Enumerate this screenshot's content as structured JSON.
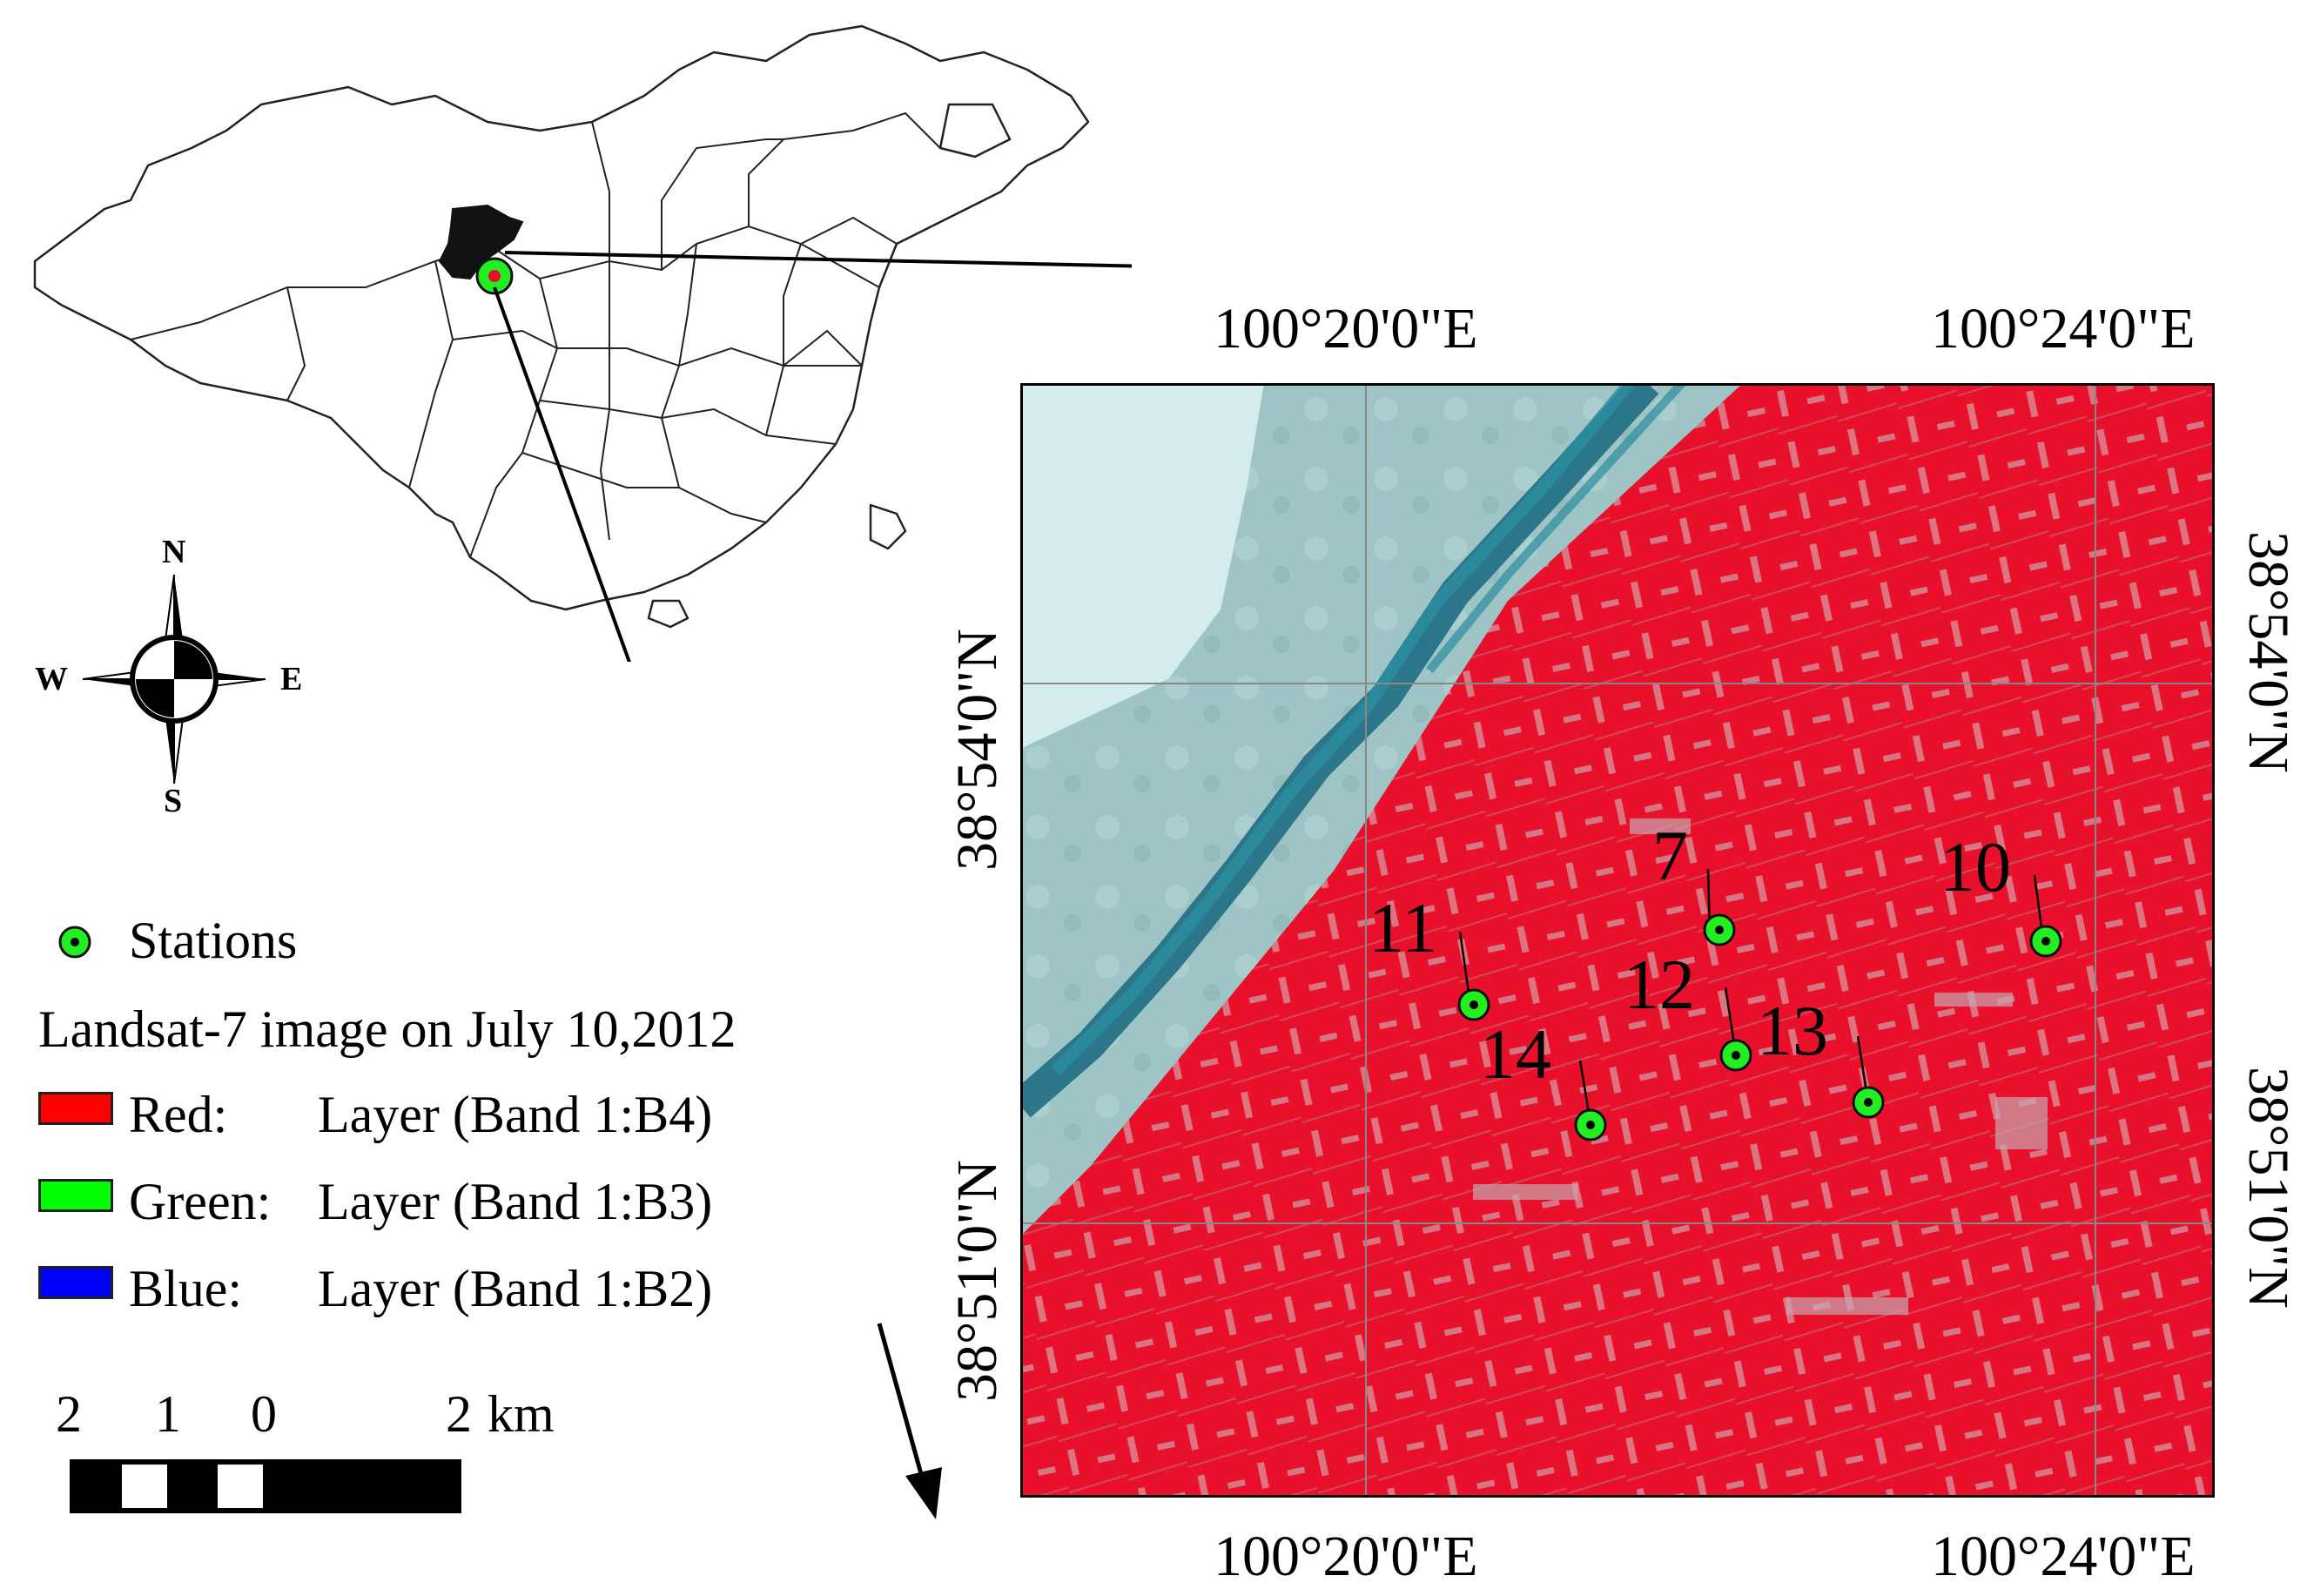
{
  "map": {
    "top_left_lon": "100°20'0\"E",
    "top_right_lon": "100°24'0\"E",
    "bottom_left_lon": "100°20'0\"E",
    "bottom_right_lon": "100°24'0\"E",
    "left_upper_lat": "38°54'0\"N",
    "left_lower_lat": "38°51'0\"N",
    "right_upper_lat": "38°54'0\"N",
    "right_lower_lat": "38°51'0\"N"
  },
  "stations": [
    {
      "id": "7"
    },
    {
      "id": "10"
    },
    {
      "id": "11"
    },
    {
      "id": "12"
    },
    {
      "id": "13"
    },
    {
      "id": "14"
    }
  ],
  "legend": {
    "stations_label": "Stations",
    "image_caption": "Landsat-7 image on July 10,2012",
    "bands": [
      {
        "channel": "Red:",
        "layer": "Layer (Band 1:B4)",
        "color": "#ff0000"
      },
      {
        "channel": "Green:",
        "layer": "Layer (Band 1:B3)",
        "color": "#00ff00"
      },
      {
        "channel": "Blue:",
        "layer": "Layer (Band 1:B2)",
        "color": "#0000ff"
      }
    ]
  },
  "compass": {
    "n": "N",
    "s": "S",
    "e": "E",
    "w": "W"
  },
  "scale_bar": {
    "labels": [
      "2",
      "1",
      "0",
      "2"
    ],
    "unit": "km"
  },
  "colors": {
    "vegetation": "#e8102a",
    "river": "#1e6f82",
    "desert": "#bfe3e2",
    "station": "#22ee22"
  }
}
